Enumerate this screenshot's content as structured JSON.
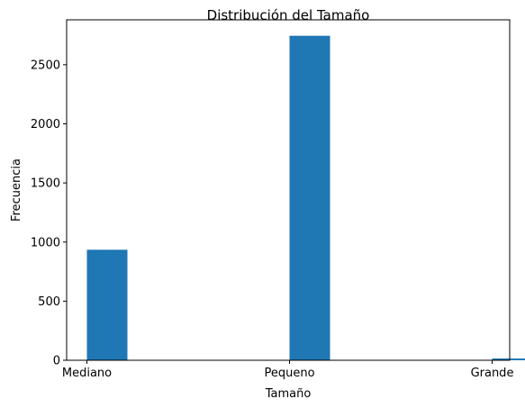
{
  "chart_data": {
    "type": "bar",
    "title": "Distribución del Tamaño",
    "xlabel": "Tamaño",
    "ylabel": "Frecuencia",
    "categories": [
      "Mediano",
      "Pequeno",
      "Grande"
    ],
    "values": [
      935,
      2745,
      15
    ],
    "ylim": [
      0,
      2880
    ],
    "yticks": [
      0,
      500,
      1000,
      1500,
      2000,
      2500
    ],
    "grid": false,
    "legend": "none",
    "bar_color": "#1f77b4"
  }
}
